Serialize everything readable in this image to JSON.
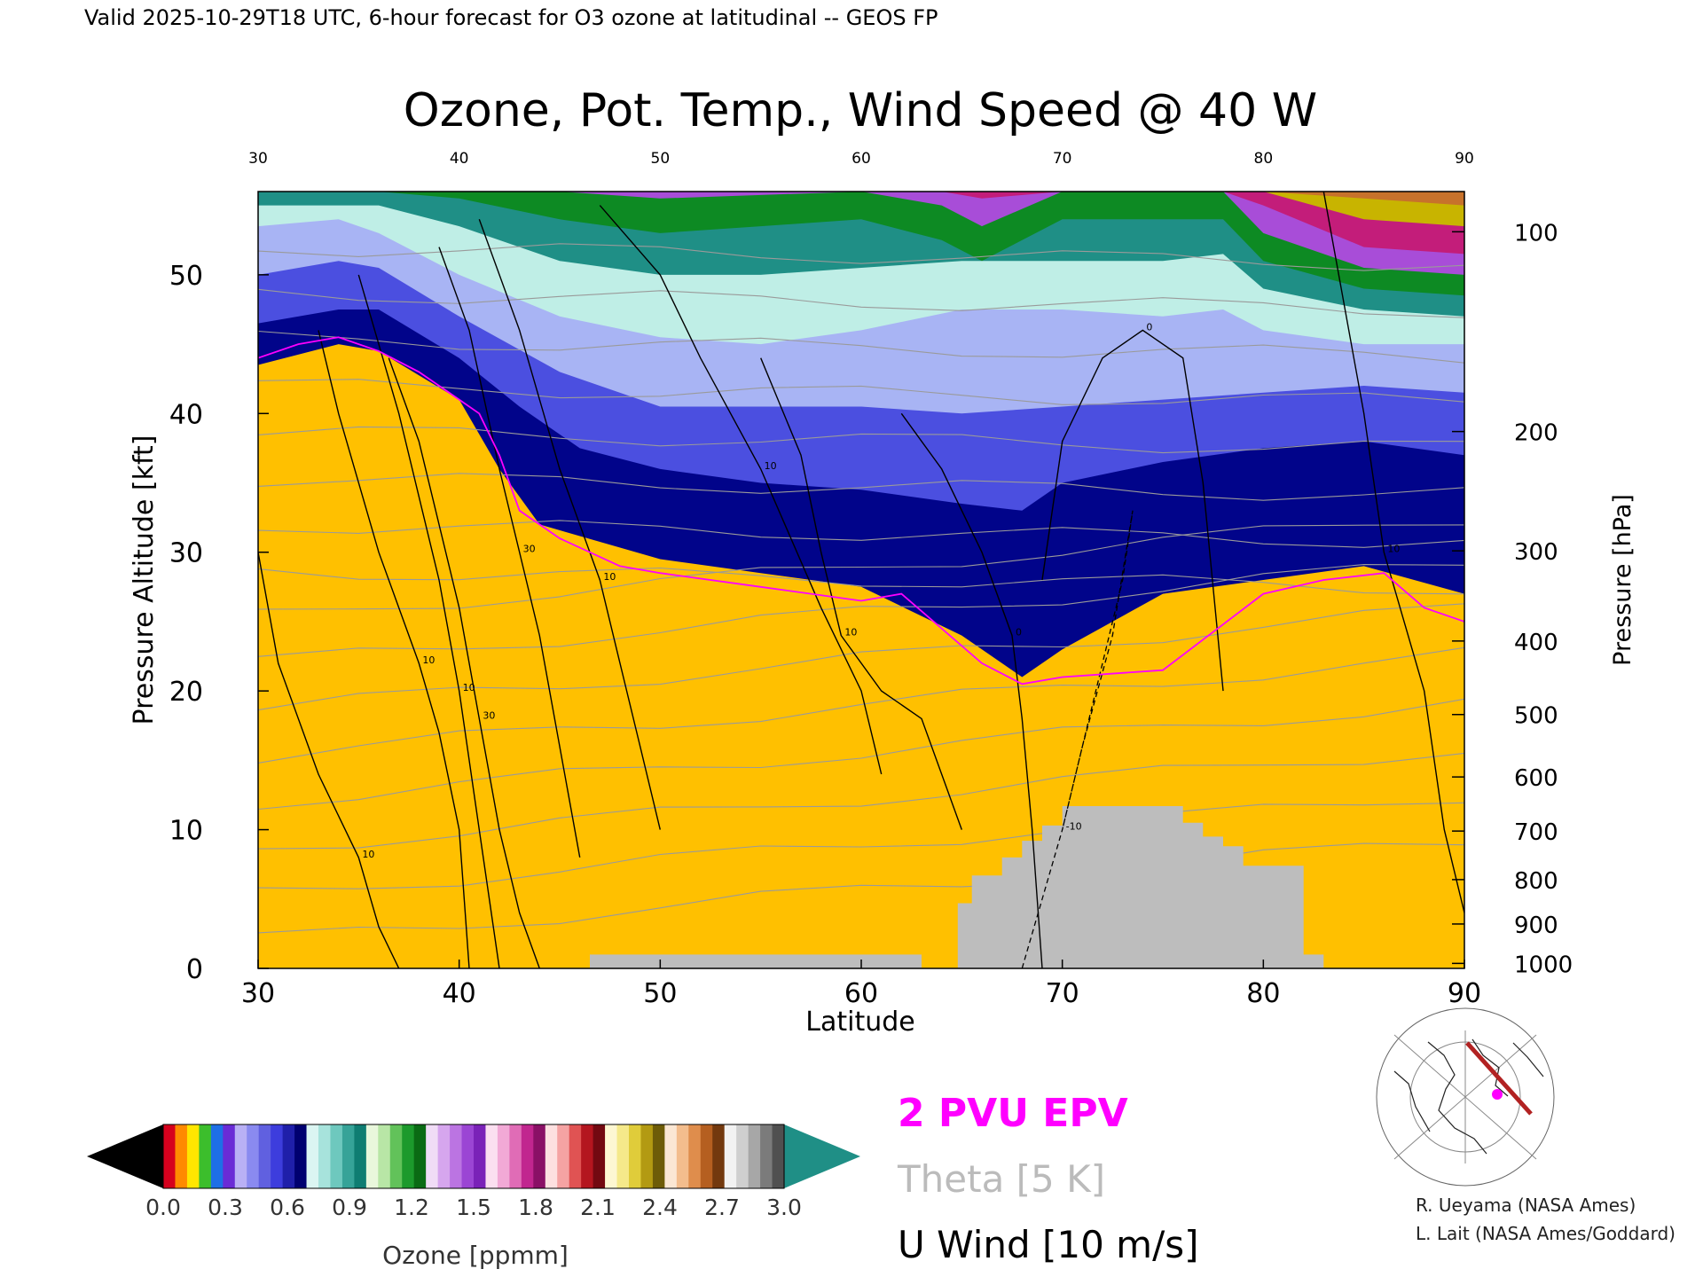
{
  "header": {
    "valid_line": "Valid 2025-10-29T18 UTC, 6-hour forecast for O3 ozone at latitudinal -- GEOS FP",
    "title": "Ozone, Pot. Temp., Wind Speed @ 40 W"
  },
  "chart_data": {
    "type": "heatmap",
    "title": "Ozone, Pot. Temp., Wind Speed @ 40 W",
    "xlabel": "Latitude",
    "ylabel": "Pressure Altitude [kft]",
    "y2label": "Pressure [hPa]",
    "xlim": [
      30,
      90
    ],
    "ylim": [
      0,
      56
    ],
    "x_ticks": [
      30,
      40,
      50,
      60,
      70,
      80,
      90
    ],
    "y_ticks": [
      0,
      10,
      20,
      30,
      40,
      50
    ],
    "pressure_ticks": [
      {
        "label": "100",
        "kft": 53.1
      },
      {
        "label": "200",
        "kft": 38.7
      },
      {
        "label": "300",
        "kft": 30.1
      },
      {
        "label": "400",
        "kft": 23.6
      },
      {
        "label": "500",
        "kft": 18.3
      },
      {
        "label": "600",
        "kft": 13.8
      },
      {
        "label": "700",
        "kft": 9.9
      },
      {
        "label": "800",
        "kft": 6.4
      },
      {
        "label": "900",
        "kft": 3.2
      },
      {
        "label": "1000",
        "kft": 0.36
      }
    ],
    "ozone_layers": [
      {
        "color": "#01048a",
        "lat": [
          30,
          34,
          36,
          40,
          42,
          44,
          50,
          55,
          60,
          65,
          68,
          70,
          75,
          80,
          85,
          90
        ],
        "top_kft": [
          43.5,
          45,
          44.5,
          41,
          36,
          32,
          29.5,
          28.5,
          27.5,
          24,
          21,
          23,
          27,
          28,
          29,
          27
        ]
      },
      {
        "color": "#4b4fe0",
        "lat": [
          30,
          34,
          36,
          40,
          43,
          46,
          50,
          55,
          60,
          65,
          68,
          70,
          75,
          80,
          85,
          90
        ],
        "top_kft": [
          46.5,
          47.5,
          47.5,
          44,
          40.5,
          37.5,
          36,
          35,
          34.5,
          33.5,
          33,
          35,
          36.5,
          37.5,
          38,
          37
        ]
      },
      {
        "color": "#a8b4f4",
        "lat": [
          30,
          34,
          36,
          40,
          45,
          50,
          55,
          60,
          65,
          70,
          75,
          80,
          85,
          90
        ],
        "top_kft": [
          50,
          51,
          50.5,
          47,
          43,
          40.5,
          40.5,
          40.5,
          40,
          40.5,
          41,
          41.5,
          42,
          41.5
        ]
      },
      {
        "color": "#bfeee6",
        "lat": [
          30,
          34,
          36,
          40,
          45,
          50,
          55,
          60,
          65,
          70,
          75,
          78,
          80,
          85,
          90
        ],
        "top_kft": [
          53.5,
          54,
          53,
          50,
          47,
          45.5,
          45,
          46,
          47.5,
          47.5,
          47,
          47.5,
          46,
          45,
          45
        ]
      },
      {
        "color": "#1f8f86",
        "lat": [
          30,
          36,
          40,
          45,
          50,
          55,
          60,
          65,
          70,
          75,
          78,
          80,
          85,
          90
        ],
        "top_kft": [
          55,
          55,
          53.5,
          51,
          50,
          50,
          50.5,
          51,
          51,
          51,
          51.5,
          49,
          47.5,
          47
        ]
      },
      {
        "color": "#0d8a23",
        "lat": [
          30,
          36,
          40,
          45,
          50,
          55,
          60,
          64,
          66,
          70,
          75,
          78,
          80,
          85,
          90
        ],
        "top_kft": [
          56,
          56,
          55.5,
          54,
          53,
          53.5,
          54,
          52.5,
          51,
          54,
          54,
          54,
          51,
          49,
          48.5
        ]
      },
      {
        "color": "#a84dd8",
        "lat": [
          30,
          40,
          45,
          50,
          60,
          64,
          66,
          70,
          78,
          80,
          85,
          90
        ],
        "top_kft": [
          56,
          56,
          56,
          55.5,
          56,
          55,
          53.5,
          56,
          56,
          53,
          50.5,
          50
        ]
      },
      {
        "color": "#c31d7a",
        "lat": [
          30,
          60,
          64,
          66,
          70,
          78,
          80,
          85,
          90
        ],
        "top_kft": [
          56,
          56,
          56,
          55.5,
          56,
          56,
          55,
          52,
          51.5
        ]
      },
      {
        "color": "#c8b400",
        "lat": [
          30,
          78,
          80,
          85,
          90
        ],
        "top_kft": [
          56,
          56,
          56,
          54,
          53.5
        ]
      },
      {
        "color": "#c7722b",
        "lat": [
          30,
          80,
          85,
          90
        ],
        "top_kft": [
          56,
          56,
          55.5,
          55
        ]
      }
    ],
    "terrain_gray": {
      "lat": [
        46.5,
        46.5,
        63,
        63,
        64.8,
        64.8,
        65.5,
        65.5,
        67,
        67,
        68,
        68,
        69,
        69,
        70,
        70,
        76,
        76,
        77,
        77,
        78,
        78,
        79,
        79,
        82,
        82,
        83,
        83
      ],
      "top_kft": [
        0,
        1.0,
        1.0,
        0,
        0,
        4.7,
        4.7,
        6.7,
        6.7,
        8.0,
        8.0,
        9.2,
        9.2,
        10.3,
        10.3,
        11.7,
        11.7,
        10.5,
        10.5,
        9.5,
        9.5,
        8.8,
        8.8,
        7.4,
        7.4,
        1.0,
        1.0,
        0
      ]
    },
    "epv_2pvu": {
      "lat": [
        30,
        32,
        34,
        36,
        38,
        40,
        41,
        42,
        43,
        45,
        48,
        50,
        55,
        60,
        62,
        66,
        68,
        70,
        75,
        80,
        83,
        86,
        88,
        90
      ],
      "kft": [
        44,
        45,
        45.5,
        44.5,
        43,
        41,
        40,
        37,
        33,
        31,
        29,
        28.5,
        27.5,
        26.5,
        27,
        22,
        20.5,
        21,
        21.5,
        27,
        28,
        28.5,
        26,
        25
      ]
    },
    "u_wind_contours": [
      {
        "label": "10",
        "lat": [
          30,
          31,
          33,
          35,
          36,
          37
        ],
        "kft": [
          30,
          22,
          14,
          8,
          3,
          0
        ]
      },
      {
        "label": "10",
        "lat": [
          33,
          34,
          36,
          38,
          39,
          40,
          40.5
        ],
        "kft": [
          46,
          40,
          30,
          22,
          17,
          10,
          0
        ]
      },
      {
        "label": "10",
        "lat": [
          35,
          37,
          39,
          40,
          41,
          42
        ],
        "kft": [
          50,
          40,
          28,
          20,
          10,
          0
        ]
      },
      {
        "label": "30",
        "lat": [
          36.5,
          38,
          40,
          41,
          42,
          43,
          44
        ],
        "kft": [
          44,
          38,
          26,
          18,
          10,
          4,
          0
        ]
      },
      {
        "label": "30",
        "lat": [
          39,
          40.5,
          42,
          43,
          44,
          45,
          46
        ],
        "kft": [
          52,
          46,
          36,
          30,
          24,
          16,
          8
        ]
      },
      {
        "label": "10",
        "lat": [
          41,
          43,
          45,
          47,
          48,
          49,
          50
        ],
        "kft": [
          54,
          46,
          36,
          28,
          22,
          16,
          10
        ]
      },
      {
        "label": "10",
        "lat": [
          47,
          50,
          52,
          55,
          58,
          60,
          61
        ],
        "kft": [
          55,
          50,
          44,
          36,
          26,
          20,
          14
        ]
      },
      {
        "label": "10",
        "lat": [
          55,
          57,
          58,
          59,
          61,
          63,
          65
        ],
        "kft": [
          44,
          37,
          30,
          24,
          20,
          18,
          10
        ]
      },
      {
        "label": "0",
        "lat": [
          62,
          64,
          66,
          67.5,
          68,
          68.5,
          69
        ],
        "kft": [
          40,
          36,
          30,
          24,
          18,
          10,
          0
        ]
      },
      {
        "label": "0",
        "lat": [
          69,
          70,
          72,
          74,
          76,
          77,
          78
        ],
        "kft": [
          28,
          38,
          44,
          46,
          44,
          35,
          20
        ]
      },
      {
        "label": "10",
        "lat": [
          83,
          84,
          85,
          86,
          88,
          89,
          90
        ],
        "kft": [
          56,
          48,
          40,
          30,
          20,
          10,
          4
        ]
      }
    ],
    "u_wind_dashed": {
      "label": "-10",
      "lat": [
        68,
        69,
        70,
        71,
        72,
        73,
        73.5,
        72.5,
        71,
        70
      ],
      "kft": [
        0,
        5,
        10,
        16,
        22,
        28,
        33,
        24,
        16,
        10
      ]
    },
    "theta_levels": [
      260,
      270,
      280,
      290,
      300,
      310,
      320,
      330,
      340,
      350,
      360,
      370,
      380,
      390,
      400,
      410
    ],
    "colorbar": {
      "label": "Ozone [ppmm]",
      "tick_labels": [
        "0.0",
        "0.3",
        "0.6",
        "0.9",
        "1.2",
        "1.5",
        "1.8",
        "2.1",
        "2.4",
        "2.7",
        "3.0"
      ],
      "low_extend_color": "#000000",
      "high_extend_color": "#1f8f86",
      "segments": [
        "#d6001d",
        "#ff8a00",
        "#ffe600",
        "#3cbe2c",
        "#1e6fe6",
        "#6a2bd6",
        "#b9b0f5",
        "#8a8af0",
        "#6060e0",
        "#3d3ddd",
        "#1f1faa",
        "#000070",
        "#dbf5f2",
        "#a7e3dc",
        "#6ec8be",
        "#36a398",
        "#0f7d72",
        "#e9f7dc",
        "#b8e6a6",
        "#62c25a",
        "#1c9a2c",
        "#0a6b14",
        "#f0dcf6",
        "#d6a6ee",
        "#bb74e2",
        "#9b45d4",
        "#7a22b8",
        "#fbdff0",
        "#f2a9d6",
        "#e06cb6",
        "#c1268f",
        "#8a1066",
        "#fde0e0",
        "#f5a3a3",
        "#e05353",
        "#b4161f",
        "#730911",
        "#fdf7d2",
        "#f5e98a",
        "#e0cc3a",
        "#b39a12",
        "#6e5c08",
        "#fbe7d4",
        "#f3bd8d",
        "#df8d4c",
        "#b55f20",
        "#73390e",
        "#f2f2f2",
        "#cfcfcf",
        "#a7a7a7",
        "#7b7b7b",
        "#505050"
      ]
    },
    "legend": [
      {
        "text": "2 PVU EPV",
        "color": "#ff00ff"
      },
      {
        "text": "Theta [5 K]",
        "color": "#bbbbbb"
      },
      {
        "text": "U Wind [10 m/s]",
        "color": "#000000"
      }
    ]
  },
  "credits": [
    "R. Ueyama (NASA Ames)",
    "L. Lait (NASA Ames/Goddard)"
  ]
}
